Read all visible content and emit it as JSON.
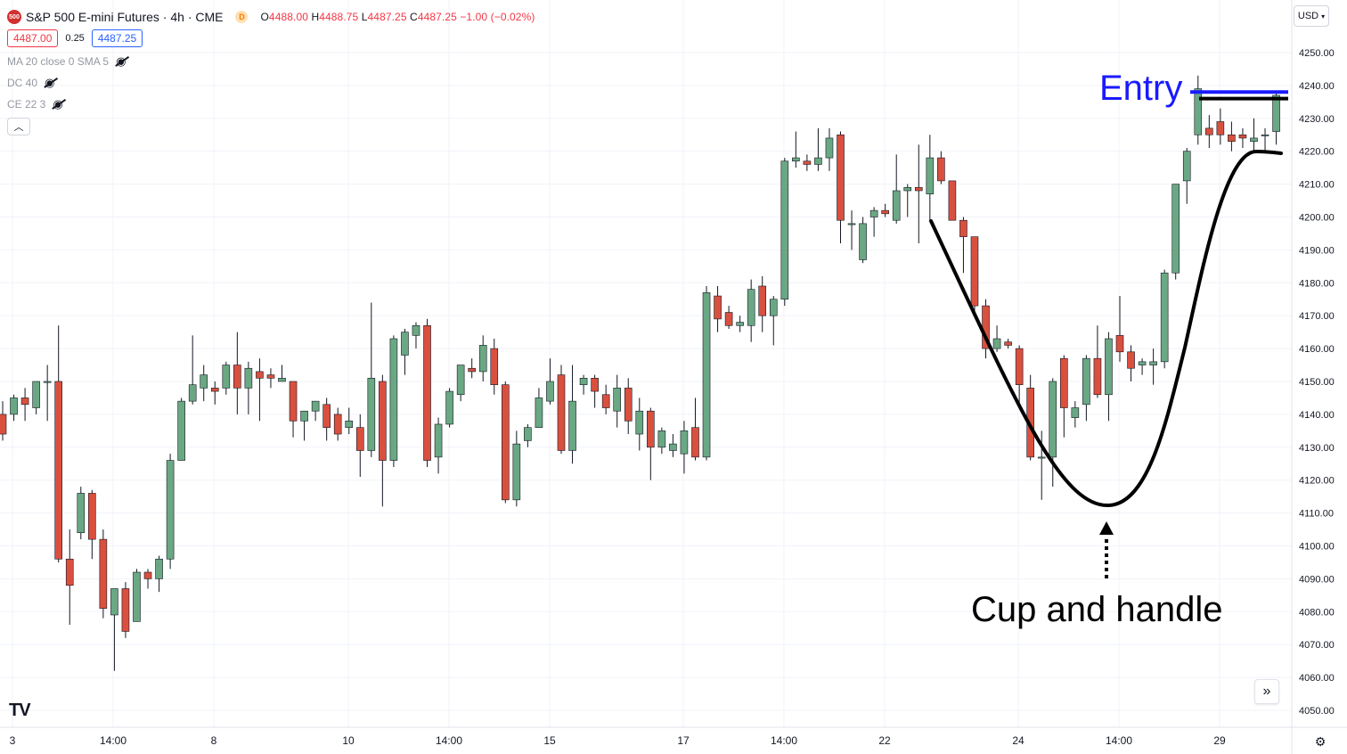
{
  "header": {
    "symbol_badge": "500",
    "title": "S&P 500 E-mini Futures · 4h · CME",
    "delayed_badge": "D",
    "ohlc": {
      "o_key": "O",
      "o": "4488.00",
      "h_key": "H",
      "h": "4488.75",
      "l_key": "L",
      "l": "4487.25",
      "c_key": "C",
      "c": "4487.25",
      "change": "−1.00 (−0.02%)"
    },
    "sell_price": "4487.00",
    "spread": "0.25",
    "buy_price": "4487.25",
    "indicators": [
      "MA 20 close 0 SMA 5",
      "DC 40",
      "CE 22 3"
    ],
    "collapse_icon": "chevron-up-icon"
  },
  "currency_label": "USD",
  "scroll_icon": "double-chevron-right-icon",
  "logo": "TV",
  "settings_icon": "gear-icon",
  "colors": {
    "up": "#6aa884",
    "down": "#d9503f",
    "wick": "#131722",
    "annotation_blue": "#1a1aff",
    "annotation_black": "#000000",
    "grid": "#f0f3fa"
  },
  "chart_data": {
    "type": "candlestick",
    "title": "S&P 500 E-mini Futures · 4h · CME",
    "ylim": [
      4045,
      4255
    ],
    "y_ticks": [
      "4250.00",
      "4240.00",
      "4230.00",
      "4220.00",
      "4210.00",
      "4200.00",
      "4190.00",
      "4180.00",
      "4170.00",
      "4160.00",
      "4150.00",
      "4140.00",
      "4130.00",
      "4120.00",
      "4110.00",
      "4100.00",
      "4090.00",
      "4080.00",
      "4070.00",
      "4060.00",
      "4050.00"
    ],
    "x_ticks": [
      "3",
      "14:00",
      "8",
      "10",
      "14:00",
      "15",
      "17",
      "14:00",
      "22",
      "24",
      "14:00",
      "29"
    ],
    "grid": true,
    "candles": [
      [
        4140,
        4144,
        4132,
        4134
      ],
      [
        4140,
        4146,
        4138,
        4145
      ],
      [
        4145,
        4148,
        4138,
        4143
      ],
      [
        4142,
        4150,
        4140,
        4150
      ],
      [
        4150,
        4155,
        4138,
        4150
      ],
      [
        4150,
        4167,
        4095,
        4096
      ],
      [
        4096,
        4105,
        4076,
        4088
      ],
      [
        4104,
        4118,
        4102,
        4116
      ],
      [
        4116,
        4117,
        4096,
        4102
      ],
      [
        4102,
        4105,
        4078,
        4081
      ],
      [
        4079,
        4087,
        4062,
        4087
      ],
      [
        4087,
        4089,
        4072,
        4074
      ],
      [
        4077,
        4093,
        4077,
        4092
      ],
      [
        4092,
        4093,
        4087,
        4090
      ],
      [
        4090,
        4097,
        4086,
        4096
      ],
      [
        4096,
        4128,
        4093,
        4126
      ],
      [
        4126,
        4145,
        4126,
        4144
      ],
      [
        4144,
        4164,
        4143,
        4149
      ],
      [
        4148,
        4155,
        4144,
        4152
      ],
      [
        4148,
        4150,
        4143,
        4147
      ],
      [
        4148,
        4156,
        4146,
        4155
      ],
      [
        4155,
        4165,
        4140,
        4148
      ],
      [
        4148,
        4156,
        4140,
        4154
      ],
      [
        4153,
        4157,
        4138,
        4151
      ],
      [
        4152,
        4154,
        4148,
        4151
      ],
      [
        4150,
        4155,
        4150,
        4151
      ],
      [
        4150,
        4150,
        4133,
        4138
      ],
      [
        4138,
        4141,
        4132,
        4141
      ],
      [
        4141,
        4144,
        4138,
        4144
      ],
      [
        4143,
        4145,
        4132,
        4136
      ],
      [
        4140,
        4142,
        4132,
        4134
      ],
      [
        4136,
        4142,
        4134,
        4138
      ],
      [
        4136,
        4140,
        4121,
        4129
      ],
      [
        4129,
        4174,
        4127,
        4151
      ],
      [
        4150,
        4152,
        4112,
        4126
      ],
      [
        4126,
        4164,
        4124,
        4163
      ],
      [
        4158,
        4166,
        4152,
        4165
      ],
      [
        4164,
        4168,
        4160,
        4167
      ],
      [
        4167,
        4169,
        4124,
        4126
      ],
      [
        4127,
        4139,
        4122,
        4137
      ],
      [
        4137,
        4148,
        4136,
        4147
      ],
      [
        4146,
        4153,
        4144,
        4155
      ],
      [
        4154,
        4157,
        4151,
        4153
      ],
      [
        4153,
        4164,
        4150,
        4161
      ],
      [
        4160,
        4163,
        4146,
        4149
      ],
      [
        4149,
        4150,
        4113,
        4114
      ],
      [
        4114,
        4135,
        4112,
        4131
      ],
      [
        4132,
        4137,
        4130,
        4136
      ],
      [
        4136,
        4148,
        4136,
        4145
      ],
      [
        4144,
        4157,
        4143,
        4150
      ],
      [
        4152,
        4155,
        4128,
        4129
      ],
      [
        4129,
        4155,
        4125,
        4144
      ],
      [
        4149,
        4152,
        4146,
        4151
      ],
      [
        4151,
        4152,
        4142,
        4147
      ],
      [
        4146,
        4149,
        4140,
        4142
      ],
      [
        4141,
        4152,
        4136,
        4148
      ],
      [
        4148,
        4151,
        4134,
        4138
      ],
      [
        4134,
        4145,
        4129,
        4141
      ],
      [
        4141,
        4142,
        4120,
        4130
      ],
      [
        4130,
        4136,
        4128,
        4135
      ],
      [
        4129,
        4134,
        4127,
        4131
      ],
      [
        4128,
        4138,
        4122,
        4135
      ],
      [
        4136,
        4145,
        4126,
        4127
      ],
      [
        4127,
        4179,
        4126,
        4177
      ],
      [
        4176,
        4179,
        4165,
        4169
      ],
      [
        4171,
        4173,
        4166,
        4167
      ],
      [
        4167,
        4170,
        4165,
        4168
      ],
      [
        4167,
        4181,
        4162,
        4178
      ],
      [
        4179,
        4182,
        4165,
        4170
      ],
      [
        4170,
        4176,
        4161,
        4175
      ],
      [
        4175,
        4218,
        4173,
        4217
      ],
      [
        4217,
        4226,
        4215,
        4218
      ],
      [
        4217,
        4219,
        4214,
        4216
      ],
      [
        4216,
        4227,
        4214,
        4218
      ],
      [
        4218,
        4227,
        4214,
        4224
      ],
      [
        4225,
        4226,
        4192,
        4199
      ],
      [
        4198,
        4202,
        4190,
        4198
      ],
      [
        4187,
        4200,
        4186,
        4198
      ],
      [
        4200,
        4203,
        4194,
        4202
      ],
      [
        4202,
        4204,
        4200,
        4201
      ],
      [
        4199,
        4219,
        4198,
        4208
      ],
      [
        4208,
        4210,
        4200,
        4209
      ],
      [
        4209,
        4222,
        4192,
        4208
      ],
      [
        4207,
        4225,
        4199,
        4218
      ],
      [
        4218,
        4220,
        4210,
        4211
      ],
      [
        4211,
        4211,
        4200,
        4199
      ],
      [
        4199,
        4200,
        4183,
        4194
      ],
      [
        4194,
        4194,
        4171,
        4173
      ],
      [
        4173,
        4175,
        4157,
        4160
      ],
      [
        4160,
        4167,
        4159,
        4163
      ],
      [
        4162,
        4163,
        4160,
        4161
      ],
      [
        4160,
        4161,
        4143,
        4149
      ],
      [
        4148,
        4152,
        4126,
        4127
      ],
      [
        4127,
        4135,
        4114,
        4127
      ],
      [
        4127,
        4151,
        4118,
        4150
      ],
      [
        4157,
        4158,
        4133,
        4142
      ],
      [
        4139,
        4144,
        4136,
        4142
      ],
      [
        4143,
        4158,
        4138,
        4157
      ],
      [
        4157,
        4167,
        4145,
        4146
      ],
      [
        4146,
        4165,
        4138,
        4163
      ],
      [
        4164,
        4176,
        4156,
        4159
      ],
      [
        4159,
        4161,
        4150,
        4154
      ],
      [
        4155,
        4157,
        4152,
        4156
      ],
      [
        4155,
        4160,
        4149,
        4156
      ],
      [
        4156,
        4184,
        4154,
        4183
      ],
      [
        4183,
        4210,
        4181,
        4210
      ],
      [
        4211,
        4221,
        4204,
        4220
      ],
      [
        4225,
        4243,
        4222,
        4239
      ],
      [
        4227,
        4231,
        4221,
        4225
      ],
      [
        4229,
        4233,
        4222,
        4225
      ],
      [
        4225,
        4229,
        4220,
        4223
      ],
      [
        4225,
        4227,
        4221,
        4224
      ],
      [
        4223,
        4230,
        4220,
        4224
      ],
      [
        4225,
        4227,
        4220,
        4225
      ],
      [
        4226,
        4238,
        4222,
        4237
      ]
    ],
    "annotations": {
      "entry_label": "Entry",
      "pattern_label": "Cup and handle",
      "entry_price": 4238,
      "resistance_price": 4236
    }
  }
}
